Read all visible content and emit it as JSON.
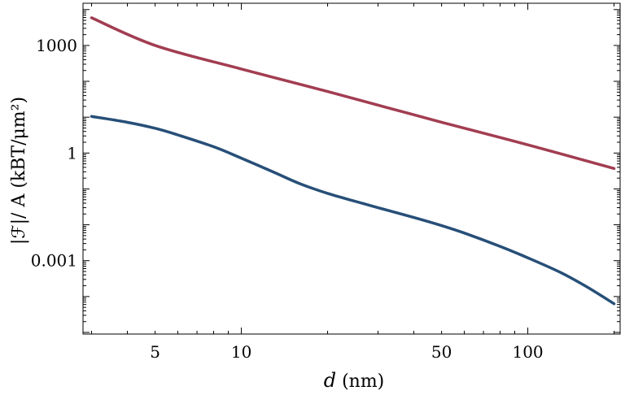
{
  "chart_data": {
    "type": "line",
    "xscale": "log",
    "yscale": "log",
    "xlim": [
      2.8,
      210
    ],
    "ylim": [
      9e-06,
      15000
    ],
    "xlabel_var": "d",
    "xlabel_unit": " (nm)",
    "ylabel": "|ℱ|/ A  (kBT/μm²)",
    "xticks": [
      {
        "value": 5,
        "label": "5"
      },
      {
        "value": 10,
        "label": "10"
      },
      {
        "value": 50,
        "label": "50"
      },
      {
        "value": 100,
        "label": "100"
      }
    ],
    "yticks": [
      {
        "value": 1000,
        "label": "1000"
      },
      {
        "value": 1,
        "label": "1"
      },
      {
        "value": 0.001,
        "label": "0.001"
      }
    ],
    "series": [
      {
        "color": "#a23d52",
        "x": [
          3,
          5,
          10,
          20,
          50,
          100,
          200
        ],
        "y": [
          5900,
          1000,
          220,
          52,
          7.2,
          1.7,
          0.37
        ]
      },
      {
        "color": "#274f78",
        "x": [
          3,
          4,
          5,
          6,
          8,
          10,
          13,
          16,
          20,
          25,
          30,
          40,
          50,
          60,
          80,
          100,
          130,
          160,
          200
        ],
        "y": [
          10.5,
          7.2,
          4.9,
          3.2,
          1.5,
          0.72,
          0.29,
          0.14,
          0.075,
          0.045,
          0.03,
          0.016,
          0.0095,
          0.0059,
          0.0025,
          0.0012,
          0.00047,
          0.00019,
          6.3e-05
        ]
      }
    ]
  }
}
